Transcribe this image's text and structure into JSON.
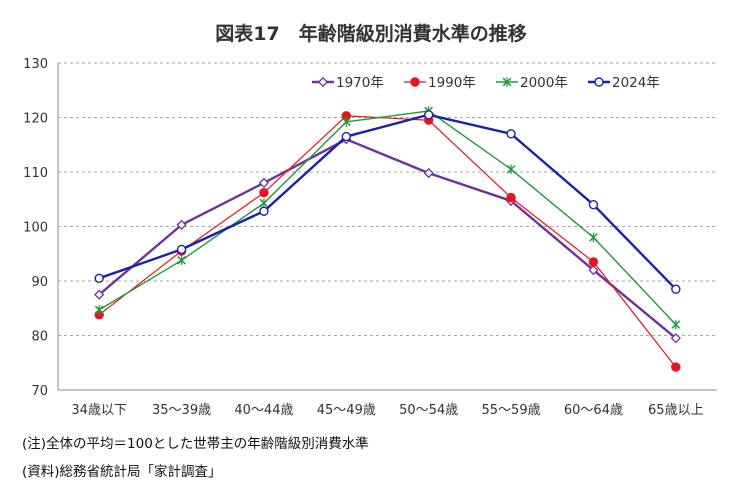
{
  "chart_data": {
    "type": "line",
    "title": "図表17　年齢階級別消費水準の推移",
    "xlabel": "",
    "ylabel": "",
    "categories": [
      "34歳以下",
      "35～39歳",
      "40～44歳",
      "45～49歳",
      "50～54歳",
      "55～59歳",
      "60～64歳",
      "65歳以上"
    ],
    "ylim": [
      70,
      130
    ],
    "yticks": [
      70,
      80,
      90,
      100,
      110,
      120,
      130
    ],
    "grid": "horizontal-dashed",
    "legend": "top-right",
    "series": [
      {
        "name": "1970年",
        "color": "#7030a0",
        "marker": "open-diamond",
        "values": [
          87.5,
          100.3,
          108.0,
          116.0,
          109.8,
          104.7,
          92.0,
          79.5
        ]
      },
      {
        "name": "1990年",
        "color": "#e8141c",
        "marker": "filled-circle",
        "values": [
          83.8,
          95.5,
          106.2,
          120.3,
          119.5,
          105.3,
          93.5,
          74.2
        ]
      },
      {
        "name": "2000年",
        "color": "#1e9b3c",
        "marker": "x",
        "values": [
          84.7,
          93.8,
          104.3,
          119.2,
          121.2,
          110.5,
          98.0,
          82.0
        ]
      },
      {
        "name": "2024年",
        "color": "#1a23a8",
        "marker": "open-circle",
        "values": [
          90.5,
          95.8,
          102.8,
          116.5,
          120.5,
          117.0,
          104.0,
          88.5
        ]
      }
    ]
  },
  "notes": {
    "note1": "(注)全体の平均＝100とした世帯主の年齢階級別消費水準",
    "note2": "(資料)総務省統計局「家計調査」"
  }
}
